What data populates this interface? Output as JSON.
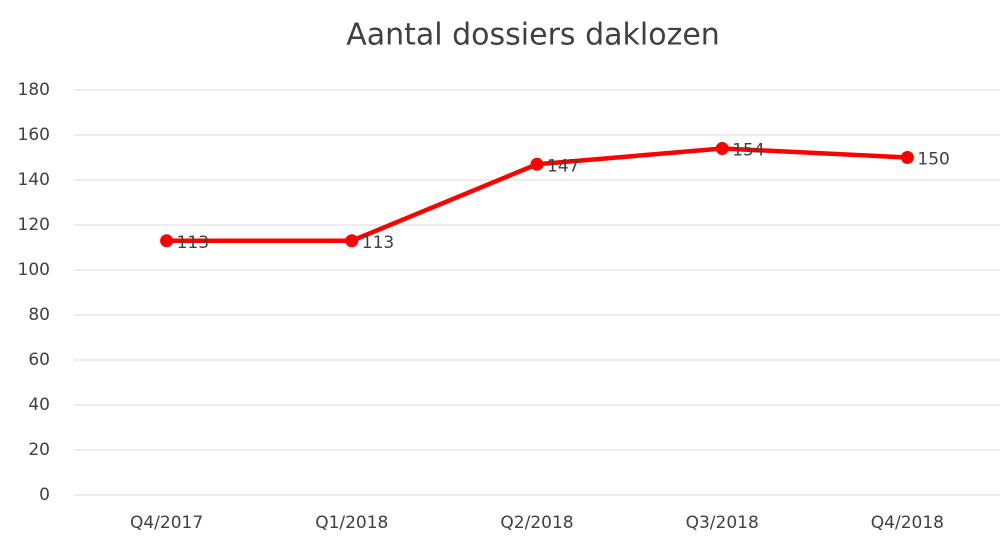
{
  "chart_data": {
    "type": "line",
    "title": "Aantal dossiers daklozen",
    "categories": [
      "Q4/2017",
      "Q1/2018",
      "Q2/2018",
      "Q3/2018",
      "Q4/2018"
    ],
    "series": [
      {
        "name": "Aantal dossiers daklozen",
        "color": "#ff0000",
        "values": [
          113,
          113,
          147,
          154,
          150
        ]
      }
    ],
    "ylim": [
      0,
      180
    ],
    "yticks": [
      0,
      20,
      40,
      60,
      80,
      100,
      120,
      140,
      160,
      180
    ],
    "grid": true
  }
}
